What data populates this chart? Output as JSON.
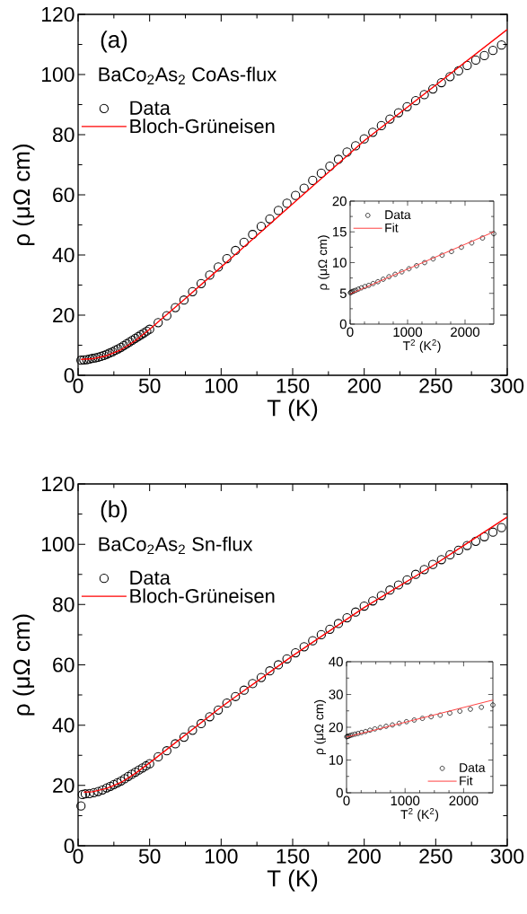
{
  "chart_data": [
    {
      "type": "scatter",
      "xlabel": "T (K)",
      "ylabel": "ρ (μΩ cm)",
      "annotations": [
        "(a)"
      ],
      "legend_title": "BaCo$_{2}$As$_{2}$ CoAs-flux",
      "legend": "top left",
      "xlim": [
        0,
        300
      ],
      "ylim": [
        0,
        120
      ],
      "xticks": [
        0,
        50,
        100,
        150,
        200,
        250,
        300
      ],
      "yticks": [
        0,
        20,
        40,
        60,
        80,
        100,
        120
      ],
      "series": [
        {
          "name": "Data",
          "marker": "circle",
          "color": "#000000",
          "x": [
            2,
            4,
            6,
            8,
            10,
            12,
            14,
            16,
            18,
            20,
            22,
            24,
            26,
            28,
            30,
            32,
            34,
            36,
            38,
            40,
            42,
            44,
            46,
            48,
            50,
            56,
            62,
            68,
            74,
            80,
            86,
            92,
            98,
            104,
            110,
            116,
            122,
            128,
            134,
            140,
            146,
            152,
            158,
            164,
            170,
            176,
            182,
            188,
            194,
            200,
            206,
            212,
            218,
            224,
            230,
            236,
            242,
            248,
            254,
            260,
            266,
            272,
            278,
            284,
            290,
            296
          ],
          "values": [
            5,
            5.1,
            5.2,
            5.4,
            5.6,
            5.8,
            6,
            6.3,
            6.6,
            7,
            7.4,
            7.8,
            8.3,
            8.8,
            9.3,
            9.9,
            10.5,
            11.1,
            11.7,
            12.3,
            12.9,
            13.5,
            14.1,
            14.7,
            15.3,
            17.5,
            19.8,
            22.5,
            25,
            27.8,
            30.5,
            33.3,
            36,
            38.8,
            41.5,
            44.2,
            46.8,
            49.5,
            52,
            54.8,
            57.2,
            59.8,
            62.2,
            64.8,
            67.2,
            69.5,
            71.8,
            74.2,
            76.3,
            78.6,
            80.8,
            83,
            85.2,
            87.3,
            89.3,
            91.3,
            93.3,
            95.2,
            97.3,
            99.3,
            101.2,
            103,
            104.8,
            106.3,
            108,
            109.8
          ]
        },
        {
          "name": "Bloch-Grüneisen",
          "type": "line",
          "marker": "none",
          "color": "#ff0000",
          "x": [
            2,
            10,
            20,
            30,
            40,
            50,
            75,
            100,
            150,
            200,
            250,
            300
          ],
          "values": [
            5.3,
            5.5,
            6.5,
            8.5,
            11.5,
            15.3,
            25.5,
            36,
            57,
            78,
            96.5,
            115
          ]
        }
      ]
    },
    {
      "type": "scatter",
      "xlabel": "T$^{2}$ (K$^{2}$)",
      "ylabel": "ρ (μΩ cm)",
      "legend": "top left",
      "xlim": [
        0,
        2500
      ],
      "ylim": [
        0,
        20
      ],
      "xticks": [
        0,
        1000,
        2000
      ],
      "yticks": [
        0,
        5,
        10,
        15,
        20
      ],
      "series": [
        {
          "name": "Data",
          "marker": "circle",
          "color": "#000000",
          "x": [
            4,
            16,
            36,
            64,
            100,
            144,
            196,
            256,
            324,
            400,
            484,
            576,
            676,
            784,
            900,
            1024,
            1156,
            1296,
            1444,
            1600,
            1764,
            1936,
            2116,
            2304,
            2500
          ],
          "values": [
            5.1,
            5.2,
            5.3,
            5.4,
            5.5,
            5.7,
            5.9,
            6.1,
            6.3,
            6.6,
            6.9,
            7.3,
            7.7,
            8.1,
            8.5,
            9,
            9.5,
            10,
            10.6,
            11.2,
            11.8,
            12.5,
            13.2,
            14,
            14.7
          ]
        },
        {
          "name": "Fit",
          "type": "line",
          "marker": "none",
          "color": "#ff4040",
          "x": [
            0,
            2500
          ],
          "values": [
            4.9,
            15
          ]
        }
      ]
    },
    {
      "type": "scatter",
      "xlabel": "T (K)",
      "ylabel": "ρ (μΩ cm)",
      "annotations": [
        "(b)"
      ],
      "legend_title": "BaCo$_{2}$As$_{2}$ Sn-flux",
      "legend": "top left",
      "xlim": [
        0,
        300
      ],
      "ylim": [
        0,
        120
      ],
      "xticks": [
        0,
        50,
        100,
        150,
        200,
        250,
        300
      ],
      "yticks": [
        0,
        20,
        40,
        60,
        80,
        100,
        120
      ],
      "series": [
        {
          "name": "Data",
          "marker": "circle",
          "color": "#000000",
          "x": [
            2,
            3,
            5,
            8,
            11,
            14,
            17,
            20,
            22.5,
            25,
            27.5,
            30,
            32.5,
            35,
            37.5,
            40,
            42.5,
            45,
            47.5,
            50,
            56,
            62,
            68,
            74,
            80,
            86,
            92,
            98,
            104,
            110,
            116,
            122,
            128,
            134,
            140,
            146,
            152,
            158,
            164,
            170,
            176,
            182,
            188,
            194,
            200,
            206,
            212,
            218,
            224,
            230,
            236,
            242,
            248,
            254,
            260,
            266,
            272,
            278,
            284,
            290,
            296
          ],
          "values": [
            13.2,
            17,
            17.2,
            17.3,
            17.6,
            18,
            18.5,
            19.2,
            19.7,
            20.3,
            20.9,
            21.5,
            22.2,
            23,
            23.7,
            24.4,
            25.1,
            25.8,
            26.5,
            27.2,
            29.5,
            31.5,
            33.8,
            36,
            38.3,
            40.5,
            42.8,
            45,
            47.3,
            49.5,
            51.6,
            53.8,
            55.8,
            58,
            60,
            62,
            64,
            66,
            68,
            70,
            71.8,
            73.7,
            75.6,
            77.5,
            79.5,
            81.2,
            83,
            84.8,
            86.5,
            88.2,
            90,
            91.6,
            93.3,
            94.9,
            96.5,
            98,
            99.6,
            101,
            102.5,
            104,
            105.5
          ]
        },
        {
          "name": "Bloch-Grüneisen",
          "type": "line",
          "marker": "none",
          "color": "#ff0000",
          "x": [
            4,
            10,
            20,
            30,
            40,
            50,
            100,
            150,
            200,
            250,
            300
          ],
          "values": [
            17.8,
            17.9,
            19,
            21,
            24,
            27.5,
            46,
            63,
            79,
            93.5,
            109
          ]
        }
      ]
    },
    {
      "type": "scatter",
      "xlabel": "T$^{2}$ (K$^{2}$)",
      "ylabel": "ρ (μΩ cm)",
      "legend": "bottom right",
      "xlim": [
        0,
        2500
      ],
      "ylim": [
        0,
        40
      ],
      "xticks": [
        0,
        1000,
        2000
      ],
      "yticks": [
        0,
        10,
        20,
        30,
        40
      ],
      "series": [
        {
          "name": "Data",
          "marker": "circle",
          "color": "#000000",
          "x": [
            4,
            16,
            36,
            64,
            100,
            144,
            196,
            256,
            324,
            400,
            484,
            576,
            676,
            784,
            900,
            1024,
            1156,
            1296,
            1444,
            1600,
            1764,
            1936,
            2116,
            2304,
            2500
          ],
          "values": [
            17.1,
            17.2,
            17.3,
            17.5,
            17.7,
            17.9,
            18.1,
            18.4,
            18.7,
            19.1,
            19.5,
            19.9,
            20.3,
            20.7,
            21.2,
            21.7,
            22.2,
            22.7,
            23.2,
            23.7,
            24.3,
            24.9,
            25.5,
            26.1,
            26.8
          ]
        },
        {
          "name": "Fit",
          "type": "line",
          "marker": "none",
          "color": "#ff4040",
          "x": [
            0,
            2500
          ],
          "values": [
            17,
            28.3
          ]
        }
      ]
    }
  ]
}
